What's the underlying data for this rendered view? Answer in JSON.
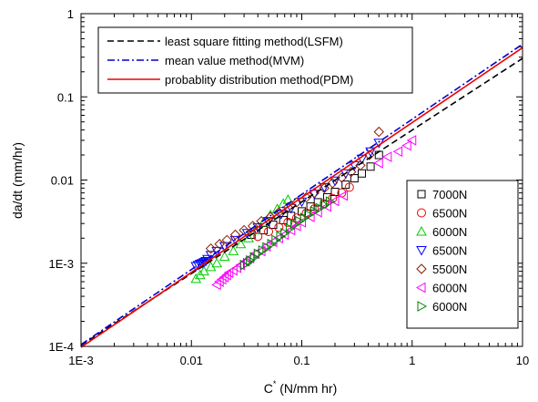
{
  "chart_data": {
    "type": "scatter",
    "xscale": "log",
    "yscale": "log",
    "xlim": [
      0.001,
      10
    ],
    "ylim": [
      0.0001,
      1
    ],
    "grid": false,
    "xlabel": "C",
    "xlabel_sup": "*",
    "xlabel_units": " (N/mm hr)",
    "ylabel": "da/dt (mm/hr)",
    "xticks": [
      {
        "value": 0.001,
        "label": "1E-3"
      },
      {
        "value": 0.01,
        "label": "0.01"
      },
      {
        "value": 0.1,
        "label": "0.1"
      },
      {
        "value": 1,
        "label": "1"
      },
      {
        "value": 10,
        "label": "10"
      }
    ],
    "yticks": [
      {
        "value": 0.0001,
        "label": "1E-4"
      },
      {
        "value": 0.001,
        "label": "1E-3"
      },
      {
        "value": 0.01,
        "label": "0.01"
      },
      {
        "value": 0.1,
        "label": "0.1"
      },
      {
        "value": 1,
        "label": "1"
      }
    ],
    "fit_legend_placement": "top-left",
    "marker_legend_placement": "bottom-right",
    "lines": [
      {
        "name": "least square fitting method(LSFM)",
        "style": "dashed",
        "color": "#000000",
        "x": [
          0.001,
          10
        ],
        "y": [
          0.000103,
          0.29
        ]
      },
      {
        "name": "mean value method(MVM)",
        "style": "dashdot",
        "color": "#0000cc",
        "x": [
          0.001,
          10
        ],
        "y": [
          0.000105,
          0.43
        ]
      },
      {
        "name": "probablity distribution method(PDM)",
        "style": "solid",
        "color": "#ee0000",
        "x": [
          0.001,
          10
        ],
        "y": [
          9.75e-05,
          0.39
        ]
      }
    ],
    "series": [
      {
        "name": "7000N",
        "marker": "square",
        "color": "#000000",
        "x": [
          0.035,
          0.045,
          0.055,
          0.068,
          0.08,
          0.1,
          0.12,
          0.14,
          0.17,
          0.2,
          0.25,
          0.3,
          0.35,
          0.42,
          0.5
        ],
        "y": [
          0.0022,
          0.0025,
          0.0029,
          0.0033,
          0.0037,
          0.0042,
          0.0048,
          0.0054,
          0.0062,
          0.0072,
          0.0088,
          0.0105,
          0.012,
          0.0145,
          0.02
        ]
      },
      {
        "name": "6500N",
        "marker": "circle",
        "color": "#ee0000",
        "x": [
          0.04,
          0.05,
          0.062,
          0.075,
          0.09,
          0.11,
          0.13,
          0.16,
          0.19,
          0.23,
          0.27
        ],
        "y": [
          0.0021,
          0.0024,
          0.0027,
          0.0031,
          0.0035,
          0.004,
          0.0045,
          0.0052,
          0.006,
          0.007,
          0.0082
        ]
      },
      {
        "name": "6000N",
        "marker": "triangle-up",
        "color": "#00cc00",
        "x": [
          0.011,
          0.012,
          0.013,
          0.015,
          0.017,
          0.02,
          0.024,
          0.028,
          0.033,
          0.038,
          0.045,
          0.052,
          0.06,
          0.068,
          0.075
        ],
        "y": [
          0.00065,
          0.00072,
          0.0008,
          0.0009,
          0.001,
          0.0012,
          0.0014,
          0.0017,
          0.002,
          0.0025,
          0.0031,
          0.0038,
          0.0045,
          0.0052,
          0.0058
        ]
      },
      {
        "name": "6500N",
        "marker": "triangle-down",
        "color": "#0000ff",
        "x": [
          0.011,
          0.0115,
          0.012,
          0.0125,
          0.013,
          0.0135,
          0.014,
          0.015,
          0.017,
          0.02,
          0.025,
          0.032,
          0.04,
          0.05,
          0.065,
          0.08,
          0.1,
          0.13,
          0.16,
          0.2,
          0.25,
          0.3,
          0.35,
          0.42,
          0.5
        ],
        "y": [
          0.00092,
          0.00095,
          0.00098,
          0.001,
          0.00103,
          0.00106,
          0.00112,
          0.00125,
          0.0014,
          0.0016,
          0.0019,
          0.0023,
          0.0027,
          0.0032,
          0.0039,
          0.0046,
          0.0055,
          0.0068,
          0.0082,
          0.0098,
          0.012,
          0.015,
          0.018,
          0.022,
          0.028
        ]
      },
      {
        "name": "5500N",
        "marker": "diamond",
        "color": "#8b1a00",
        "x": [
          0.015,
          0.018,
          0.021,
          0.025,
          0.03,
          0.036,
          0.043,
          0.052,
          0.062,
          0.075,
          0.09,
          0.11,
          0.13,
          0.16,
          0.19,
          0.23,
          0.28,
          0.34,
          0.41,
          0.5
        ],
        "y": [
          0.0015,
          0.0017,
          0.0019,
          0.0022,
          0.0025,
          0.0028,
          0.0032,
          0.0036,
          0.0041,
          0.0047,
          0.0054,
          0.0062,
          0.007,
          0.008,
          0.0092,
          0.0107,
          0.0125,
          0.015,
          0.02,
          0.038
        ]
      },
      {
        "name": "6000N",
        "marker": "triangle-left",
        "color": "#ff00ff",
        "x": [
          0.017,
          0.018,
          0.019,
          0.02,
          0.021,
          0.022,
          0.024,
          0.026,
          0.028,
          0.031,
          0.034,
          0.038,
          0.043,
          0.048,
          0.055,
          0.062,
          0.07,
          0.08,
          0.09,
          0.1,
          0.12,
          0.14,
          0.17,
          0.2,
          0.24,
          0.5,
          0.6,
          0.75,
          0.9,
          1.0
        ],
        "y": [
          0.00055,
          0.0006,
          0.00064,
          0.00068,
          0.00072,
          0.00077,
          0.00082,
          0.00088,
          0.00095,
          0.00105,
          0.00115,
          0.0013,
          0.0014,
          0.0016,
          0.0018,
          0.002,
          0.0022,
          0.0025,
          0.0028,
          0.0031,
          0.0036,
          0.0041,
          0.0048,
          0.0056,
          0.0065,
          0.016,
          0.019,
          0.022,
          0.026,
          0.03
        ]
      },
      {
        "name": "6000N",
        "marker": "triangle-right",
        "color": "#008000",
        "x": [
          0.03,
          0.032,
          0.034,
          0.037,
          0.04,
          0.044,
          0.048,
          0.053,
          0.058,
          0.064,
          0.07,
          0.078,
          0.086,
          0.095,
          0.105,
          0.115,
          0.13,
          0.145,
          0.16,
          0.18
        ],
        "y": [
          0.00095,
          0.001,
          0.00108,
          0.00118,
          0.0013,
          0.00142,
          0.00155,
          0.0017,
          0.0019,
          0.0021,
          0.0023,
          0.0026,
          0.0029,
          0.0032,
          0.0035,
          0.0038,
          0.0042,
          0.0046,
          0.005,
          0.0055
        ]
      }
    ]
  }
}
